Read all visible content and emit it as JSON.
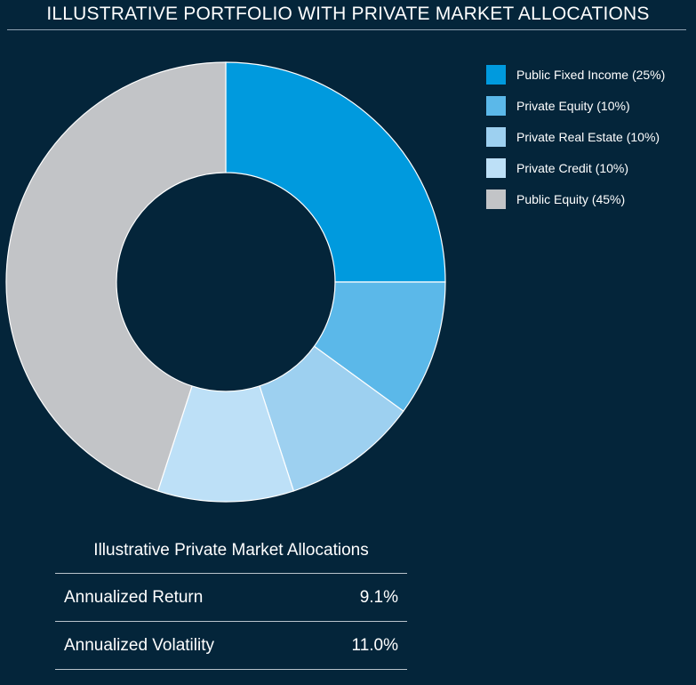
{
  "chart_data": {
    "type": "pie",
    "title": "ILLUSTRATIVE PORTFOLIO WITH PRIVATE MARKET ALLOCATIONS",
    "donut": true,
    "legend_position": "top-right",
    "slices": [
      {
        "label": "Public Fixed Income (25%)",
        "value": 25,
        "color": "#009ade"
      },
      {
        "label": "Private Equity (10%)",
        "value": 10,
        "color": "#5bb8e9"
      },
      {
        "label": "Private Real Estate (10%)",
        "value": 10,
        "color": "#9dd0f0"
      },
      {
        "label": "Private Credit (10%)",
        "value": 10,
        "color": "#bde0f7"
      },
      {
        "label": "Public Equity (45%)",
        "value": 45,
        "color": "#c2c4c7"
      }
    ]
  },
  "stats_table": {
    "title": "Illustrative Private Market Allocations",
    "rows": [
      {
        "label": "Annualized Return",
        "value": "9.1%"
      },
      {
        "label": "Annualized Volatility",
        "value": "11.0%"
      }
    ]
  },
  "colors": {
    "background": "#04253a",
    "text": "#ffffff"
  }
}
